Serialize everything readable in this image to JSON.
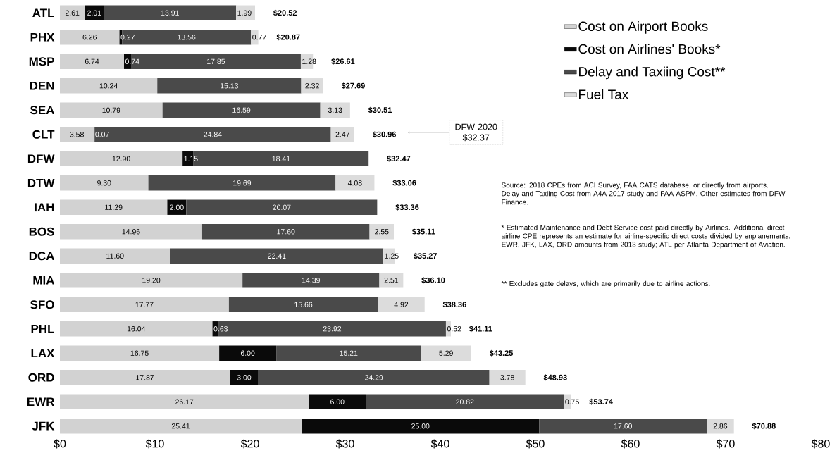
{
  "chart_data": {
    "type": "bar",
    "orientation": "horizontal",
    "stacked": true,
    "categories": [
      "ATL",
      "PHX",
      "MSP",
      "DEN",
      "SEA",
      "CLT",
      "DFW",
      "DTW",
      "IAH",
      "BOS",
      "DCA",
      "MIA",
      "SFO",
      "PHL",
      "LAX",
      "ORD",
      "EWR",
      "JFK"
    ],
    "series": [
      {
        "name": "Cost on Airport Books",
        "color": "#d2d2d2",
        "values": [
          2.61,
          6.26,
          6.74,
          10.24,
          10.79,
          3.58,
          12.9,
          9.3,
          11.29,
          14.96,
          11.6,
          19.2,
          17.77,
          16.04,
          16.75,
          17.87,
          26.17,
          25.41
        ],
        "value_labels": [
          "2.61",
          "6.26",
          "6.74",
          "10.24",
          "10.79",
          "3.58",
          "12.90",
          "9.30",
          "11.29",
          "14.96",
          "11.60",
          "19.20",
          "17.77",
          "16.04",
          "16.75",
          "17.87",
          "26.17",
          "25.41"
        ]
      },
      {
        "name": "Cost on Airlines' Books*",
        "color": "#0a0a0a",
        "values": [
          2.01,
          0.27,
          0.74,
          null,
          null,
          0.07,
          1.15,
          null,
          2.0,
          null,
          null,
          null,
          null,
          0.63,
          6.0,
          3.0,
          6.0,
          25.0
        ],
        "value_labels": [
          "2.01",
          "0.27",
          "0.74",
          null,
          null,
          "0.07",
          "1.15",
          null,
          "2.00",
          null,
          null,
          null,
          null,
          "0.63",
          "6.00",
          "3.00",
          "6.00",
          "25.00"
        ]
      },
      {
        "name": "Delay and Taxiing Cost**",
        "color": "#4a4a4a",
        "values": [
          13.91,
          13.56,
          17.85,
          15.13,
          16.59,
          24.84,
          18.41,
          19.69,
          20.07,
          17.6,
          22.41,
          14.39,
          15.66,
          23.92,
          15.21,
          24.29,
          20.82,
          17.6
        ],
        "value_labels": [
          "13.91",
          "13.56",
          "17.85",
          "15.13",
          "16.59",
          "24.84",
          "18.41",
          "19.69",
          "20.07",
          "17.60",
          "22.41",
          "14.39",
          "15.66",
          "23.92",
          "15.21",
          "24.29",
          "20.82",
          "17.60"
        ]
      },
      {
        "name": "Fuel Tax",
        "color": "#dcdcdc",
        "values": [
          1.99,
          0.77,
          1.28,
          2.32,
          3.13,
          2.47,
          null,
          4.08,
          null,
          2.55,
          1.25,
          2.51,
          4.92,
          0.52,
          5.29,
          3.78,
          0.75,
          2.86
        ],
        "value_labels": [
          "1.99",
          "0.77",
          "1.28",
          "2.32",
          "3.13",
          "2.47",
          null,
          "4.08",
          null,
          "2.55",
          "1.25",
          "2.51",
          "4.92",
          "0.52",
          "5.29",
          "3.78",
          "0.75",
          "2.86"
        ]
      }
    ],
    "totals": [
      "$20.52",
      "$20.87",
      "$26.61",
      "$27.69",
      "$30.51",
      "$30.96",
      "$32.47",
      "$33.06",
      "$33.36",
      "$35.11",
      "$35.27",
      "$36.10",
      "$38.36",
      "$41.11",
      "$43.25",
      "$48.93",
      "$53.74",
      "$70.88"
    ],
    "xlim": [
      0,
      80
    ],
    "xticks": [
      {
        "value": 0,
        "label": "$0"
      },
      {
        "value": 10,
        "label": "$10"
      },
      {
        "value": 20,
        "label": "$20"
      },
      {
        "value": 30,
        "label": "$30"
      },
      {
        "value": 40,
        "label": "$40"
      },
      {
        "value": 50,
        "label": "$50"
      },
      {
        "value": 60,
        "label": "$60"
      },
      {
        "value": 70,
        "label": "$70"
      },
      {
        "value": 80,
        "label": "$80"
      }
    ],
    "grid": false,
    "legend": "top right",
    "annotations": [
      "Source: 2018 CPEs from ACI Survey, FAA CATS database, or directly from airports.  Delay and Taxiing Cost from A4A 2017 study and FAA ASPM. Other estimates from DFW Finance.",
      "* Estimated Maintenance and Debt Service cost paid directly by Airlines. Additional direct airline CPE represents an estimate for airline-specific direct costs divided by enplanements.  EWR, JFK, LAX, ORD amounts from 2013 study; ATL per Atlanta Department of Aviation.",
      "** Excludes gate delays, which are primarily due to airline actions.",
      "DFW 2020 $32.37"
    ]
  }
}
